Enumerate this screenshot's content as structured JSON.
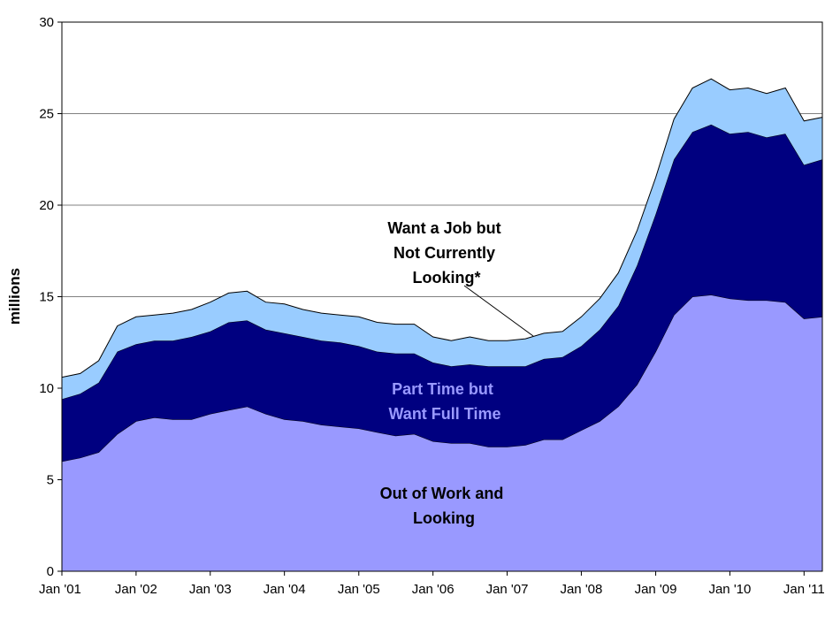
{
  "chart_data": {
    "type": "area",
    "stacked": true,
    "ylabel": "millions",
    "ylim": [
      0,
      30
    ],
    "yticks": [
      "0",
      "5",
      "10",
      "15",
      "20",
      "25",
      "30"
    ],
    "xtick_labels": [
      "Jan '01",
      "Jan '02",
      "Jan '03",
      "Jan '04",
      "Jan '05",
      "Jan '06",
      "Jan '07",
      "Jan '08",
      "Jan '09",
      "Jan '10",
      "Jan '11"
    ],
    "grid": true,
    "legend": "none",
    "x": [
      "2001-01",
      "2001-04",
      "2001-07",
      "2001-10",
      "2002-01",
      "2002-04",
      "2002-07",
      "2002-10",
      "2003-01",
      "2003-04",
      "2003-07",
      "2003-10",
      "2004-01",
      "2004-04",
      "2004-07",
      "2004-10",
      "2005-01",
      "2005-04",
      "2005-07",
      "2005-10",
      "2006-01",
      "2006-04",
      "2006-07",
      "2006-10",
      "2007-01",
      "2007-04",
      "2007-07",
      "2007-10",
      "2008-01",
      "2008-04",
      "2008-07",
      "2008-10",
      "2009-01",
      "2009-04",
      "2009-07",
      "2009-10",
      "2010-01",
      "2010-04",
      "2010-07",
      "2010-10",
      "2011-01",
      "2011-04"
    ],
    "series": [
      {
        "name": "Out of Work and Looking",
        "color": "#9999ff",
        "values": [
          6.0,
          6.2,
          6.5,
          7.5,
          8.2,
          8.4,
          8.3,
          8.3,
          8.6,
          8.8,
          9.0,
          8.6,
          8.3,
          8.2,
          8.0,
          7.9,
          7.8,
          7.6,
          7.4,
          7.5,
          7.1,
          7.0,
          7.0,
          6.8,
          6.8,
          6.9,
          7.2,
          7.2,
          7.7,
          8.2,
          9.0,
          10.2,
          12.0,
          14.0,
          15.0,
          15.1,
          14.9,
          14.8,
          14.8,
          14.7,
          13.8,
          13.9
        ]
      },
      {
        "name": "Part Time but Want Full Time",
        "color": "#000080",
        "values": [
          3.4,
          3.5,
          3.8,
          4.5,
          4.2,
          4.2,
          4.3,
          4.5,
          4.5,
          4.8,
          4.7,
          4.6,
          4.7,
          4.6,
          4.6,
          4.6,
          4.5,
          4.4,
          4.5,
          4.4,
          4.3,
          4.2,
          4.3,
          4.4,
          4.4,
          4.3,
          4.4,
          4.5,
          4.6,
          5.0,
          5.5,
          6.5,
          7.5,
          8.5,
          9.0,
          9.3,
          9.0,
          9.2,
          8.9,
          9.2,
          8.4,
          8.6
        ]
      },
      {
        "name": "Want a Job but Not Currently Looking*",
        "color": "#99ccff",
        "values": [
          1.2,
          1.1,
          1.2,
          1.4,
          1.5,
          1.4,
          1.5,
          1.5,
          1.6,
          1.6,
          1.6,
          1.5,
          1.6,
          1.5,
          1.5,
          1.5,
          1.6,
          1.6,
          1.6,
          1.6,
          1.4,
          1.4,
          1.5,
          1.4,
          1.4,
          1.5,
          1.4,
          1.4,
          1.6,
          1.7,
          1.8,
          1.9,
          2.0,
          2.2,
          2.4,
          2.5,
          2.4,
          2.4,
          2.4,
          2.5,
          2.4,
          2.3
        ]
      }
    ],
    "annotations": {
      "out_of_work": [
        "Out of Work and",
        "Looking"
      ],
      "part_time": [
        "Part Time but",
        "Want Full Time"
      ],
      "want_job": [
        "Want a Job but",
        "Not Currently",
        "Looking*"
      ]
    }
  }
}
